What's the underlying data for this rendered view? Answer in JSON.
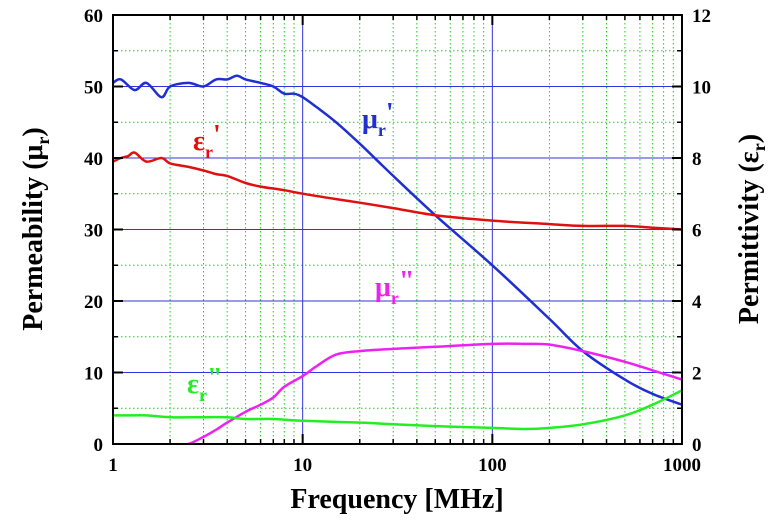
{
  "chart_data": {
    "type": "line",
    "xlabel": "Frequency [MHz]",
    "ylabel_left": "Permeability (μ",
    "ylabel_left_sub": "r",
    "ylabel_left_close": ")",
    "ylabel_right": "Permittivity (ε",
    "ylabel_right_sub": "r",
    "ylabel_right_close": ")",
    "x_scale": "log",
    "xlim": [
      1,
      1000
    ],
    "ylim_left": [
      0,
      60
    ],
    "ylim_right": [
      0,
      12
    ],
    "x_ticks": [
      "1",
      "10",
      "100",
      "1000"
    ],
    "y_left_ticks": [
      "0",
      "10",
      "20",
      "30",
      "40",
      "50",
      "60"
    ],
    "y_right_ticks": [
      "0",
      "2",
      "4",
      "6",
      "8",
      "10",
      "12"
    ],
    "grid": true,
    "colors": {
      "mu_real": "#1f2fd0",
      "eps_real": "#e01010",
      "mu_imag": "#ee22ee",
      "eps_imag": "#22ee22",
      "major_grid": "#3333dd",
      "minor_grid": "#22cc22"
    },
    "series": [
      {
        "name": "μ",
        "sub": "r",
        "prime": "'",
        "axis": "left",
        "color": "#1f2fd0",
        "x": [
          1,
          1.1,
          1.3,
          1.5,
          1.8,
          2,
          2.5,
          3,
          3.5,
          4,
          4.5,
          5,
          6,
          7,
          8,
          9,
          10,
          12,
          15,
          20,
          30,
          50,
          100,
          200,
          300,
          500,
          700,
          1000
        ],
        "y": [
          50.5,
          51,
          49.5,
          50.5,
          48.5,
          50,
          50.5,
          50,
          51,
          51,
          51.5,
          51,
          50.5,
          50,
          49,
          49,
          48.5,
          47,
          45,
          42,
          37.5,
          32,
          25,
          17.5,
          13,
          9,
          7,
          5.5
        ]
      },
      {
        "name": "ε",
        "sub": "r",
        "prime": "'",
        "axis": "right",
        "color": "#e01010",
        "x": [
          1,
          1.1,
          1.2,
          1.3,
          1.5,
          1.8,
          2,
          2.5,
          3,
          3.5,
          4,
          5,
          6,
          8,
          10,
          15,
          20,
          30,
          50,
          100,
          200,
          300,
          500,
          700,
          1000
        ],
        "y": [
          7.9,
          8.0,
          8.05,
          8.15,
          7.9,
          8.0,
          7.85,
          7.75,
          7.65,
          7.55,
          7.5,
          7.3,
          7.2,
          7.1,
          7.0,
          6.85,
          6.75,
          6.6,
          6.4,
          6.25,
          6.15,
          6.1,
          6.1,
          6.05,
          6.0
        ]
      },
      {
        "name": "μ",
        "sub": "r",
        "prime": "\"",
        "axis": "left",
        "color": "#ee22ee",
        "x": [
          1.8,
          2,
          2.5,
          3,
          3.5,
          4,
          5,
          6,
          7,
          8,
          10,
          12,
          15,
          20,
          30,
          50,
          100,
          150,
          200,
          300,
          500,
          700,
          1000
        ],
        "y": [
          -1,
          -0.5,
          0,
          1,
          2,
          3,
          4.5,
          5.5,
          6.5,
          8,
          9.5,
          11,
          12.5,
          13,
          13.3,
          13.6,
          14,
          14,
          13.9,
          13,
          11.5,
          10.3,
          9
        ]
      },
      {
        "name": "ε",
        "sub": "r",
        "prime": "\"",
        "axis": "right",
        "color": "#22ee22",
        "x": [
          1,
          1.2,
          1.5,
          2,
          3,
          4,
          5,
          7,
          10,
          20,
          30,
          50,
          100,
          150,
          200,
          300,
          500,
          700,
          1000
        ],
        "y": [
          0.8,
          0.8,
          0.8,
          0.75,
          0.75,
          0.75,
          0.7,
          0.7,
          0.65,
          0.6,
          0.55,
          0.5,
          0.45,
          0.42,
          0.45,
          0.55,
          0.8,
          1.1,
          1.5
        ]
      }
    ]
  }
}
